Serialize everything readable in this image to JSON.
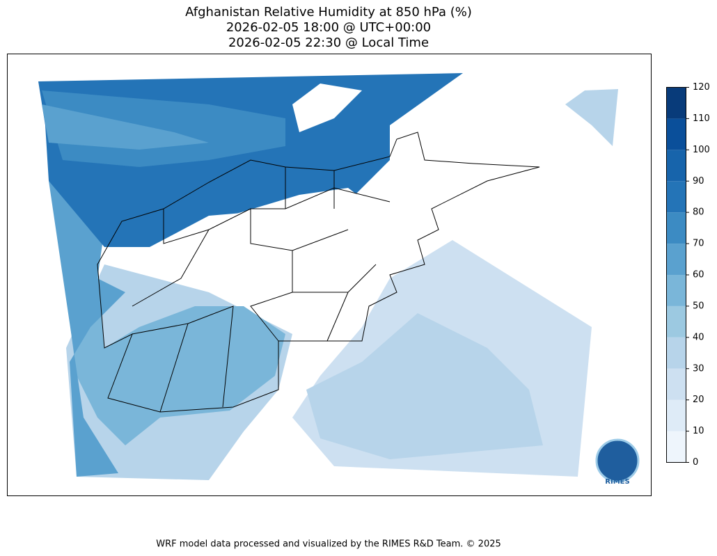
{
  "map": {
    "title": [
      "Afghanistan Relative Humidity at 850 hPa (%)",
      "2026-02-05 18:00 @ UTC+00:00",
      "2026-02-05 22:30 @ Local Time"
    ],
    "colorbar": {
      "ticks": [
        0,
        10,
        20,
        30,
        40,
        50,
        60,
        70,
        80,
        90,
        100,
        110,
        120
      ],
      "colors": [
        "#eef5fc",
        "#deebf7",
        "#cde0f1",
        "#b7d4ea",
        "#9cc9e1",
        "#7ab6d9",
        "#5aa1cf",
        "#3c8bc3",
        "#2474b7",
        "#1764ab",
        "#0a4f9a",
        "#083b7a"
      ]
    },
    "logo": "RIMES",
    "footer": "WRF model data processed and visualized by the RIMES R&D Team. © 2025"
  }
}
